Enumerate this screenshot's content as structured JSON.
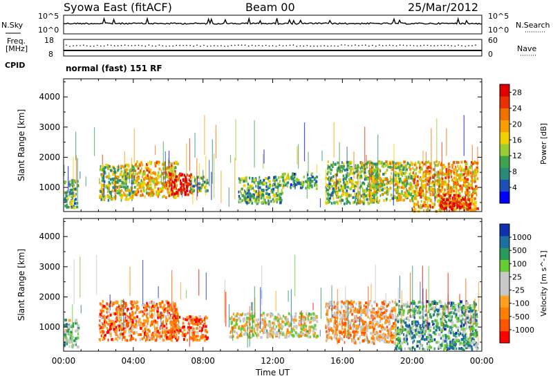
{
  "header": {
    "station": "Syowa East (fitACF)",
    "beam": "Beam 00",
    "date": "25/Mar/2012"
  },
  "side_labels": {
    "nsky": "N.Sky",
    "nsearch": "N.Search",
    "freq_line1": "Freq.",
    "freq_line2": "[MHz]",
    "nave": "Nave",
    "cpid": "CPID",
    "cpid_value": "normal (fast) 151 RF",
    "noise_left_top": "10^5",
    "noise_left_bottom": "10^0",
    "noise_right_top": "10^5",
    "noise_right_bottom": "10^0",
    "freq_left_top": "18",
    "freq_left_bottom": "8",
    "freq_right_top": "60",
    "freq_right_bottom": "0"
  },
  "chart_data": [
    {
      "type": "heatmap",
      "panel": "power",
      "ylabel": "Slant Range [km]",
      "xlabel": "",
      "ylim": [
        200,
        4600
      ],
      "xlim": [
        0,
        24
      ],
      "y_ticks": [
        "1000",
        "2000",
        "3000",
        "4000"
      ],
      "colorbar": {
        "label": "Power [dB]",
        "ticks": [
          "4",
          "8",
          "12",
          "16",
          "20",
          "24",
          "28"
        ],
        "range": [
          0,
          30
        ]
      },
      "regions": [
        {
          "t0": 0.0,
          "t1": 0.8,
          "r0": 350,
          "r1": 1300,
          "level": 0.35
        },
        {
          "t0": 2.0,
          "t1": 4.0,
          "r0": 600,
          "r1": 1800,
          "level": 0.45
        },
        {
          "t0": 4.0,
          "t1": 6.5,
          "r0": 700,
          "r1": 1900,
          "level": 0.62
        },
        {
          "t0": 6.0,
          "t1": 7.3,
          "r0": 800,
          "r1": 1500,
          "level": 0.92
        },
        {
          "t0": 7.2,
          "t1": 8.2,
          "r0": 900,
          "r1": 1400,
          "level": 0.4
        },
        {
          "t0": 10.0,
          "t1": 12.5,
          "r0": 500,
          "r1": 1400,
          "level": 0.35
        },
        {
          "t0": 12.5,
          "t1": 14.5,
          "r0": 1000,
          "r1": 1500,
          "level": 0.3
        },
        {
          "t0": 15.0,
          "t1": 18.0,
          "r0": 500,
          "r1": 1900,
          "level": 0.4
        },
        {
          "t0": 17.5,
          "t1": 20.0,
          "r0": 600,
          "r1": 1900,
          "level": 0.5
        },
        {
          "t0": 20.0,
          "t1": 23.7,
          "r0": 250,
          "r1": 1900,
          "level": 0.65
        },
        {
          "t0": 21.5,
          "t1": 23.3,
          "r0": 300,
          "r1": 800,
          "level": 0.92
        }
      ]
    },
    {
      "type": "heatmap",
      "panel": "velocity",
      "ylabel": "Slant Range [km]",
      "xlabel": "Time UT",
      "ylim": [
        200,
        4600
      ],
      "xlim": [
        0,
        24
      ],
      "y_ticks": [
        "1000",
        "2000",
        "3000",
        "4000"
      ],
      "x_ticks": [
        "00:00",
        "04:00",
        "08:00",
        "12:00",
        "16:00",
        "20:00",
        "00:00"
      ],
      "colorbar": {
        "label": "Velocity [m s^-1]",
        "ticks": [
          "1000",
          "500",
          "100",
          "25",
          "-25",
          "-100",
          "-500",
          "-1000"
        ],
        "range": [
          -1000,
          1000
        ]
      },
      "regions": [
        {
          "t0": 0.0,
          "t1": 0.8,
          "r0": 350,
          "r1": 1300,
          "level": 0.6
        },
        {
          "t0": 2.0,
          "t1": 6.5,
          "r0": 600,
          "r1": 1900,
          "level": 0.25
        },
        {
          "t0": 6.0,
          "t1": 8.2,
          "r0": 600,
          "r1": 1400,
          "level": 0.22
        },
        {
          "t0": 9.5,
          "t1": 14.5,
          "r0": 700,
          "r1": 1500,
          "level": 0.48
        },
        {
          "t0": 15.0,
          "t1": 19.0,
          "r0": 500,
          "r1": 1900,
          "level": 0.33
        },
        {
          "t0": 19.0,
          "t1": 23.7,
          "r0": 300,
          "r1": 1900,
          "level": 0.7
        }
      ]
    }
  ],
  "colors": {
    "power_scale": [
      "#0000ff",
      "#1e4fb4",
      "#2a8a7a",
      "#3fa34d",
      "#9acd32",
      "#f0d000",
      "#f5a000",
      "#f07000",
      "#e83000",
      "#e00000"
    ],
    "velocity_scale": [
      "#ff0000",
      "#ff5500",
      "#ff8000",
      "#ffa020",
      "#c8c8c8",
      "#c8c8c8",
      "#66cc33",
      "#2a9a5a",
      "#1e6fa0",
      "#1030b0"
    ]
  }
}
